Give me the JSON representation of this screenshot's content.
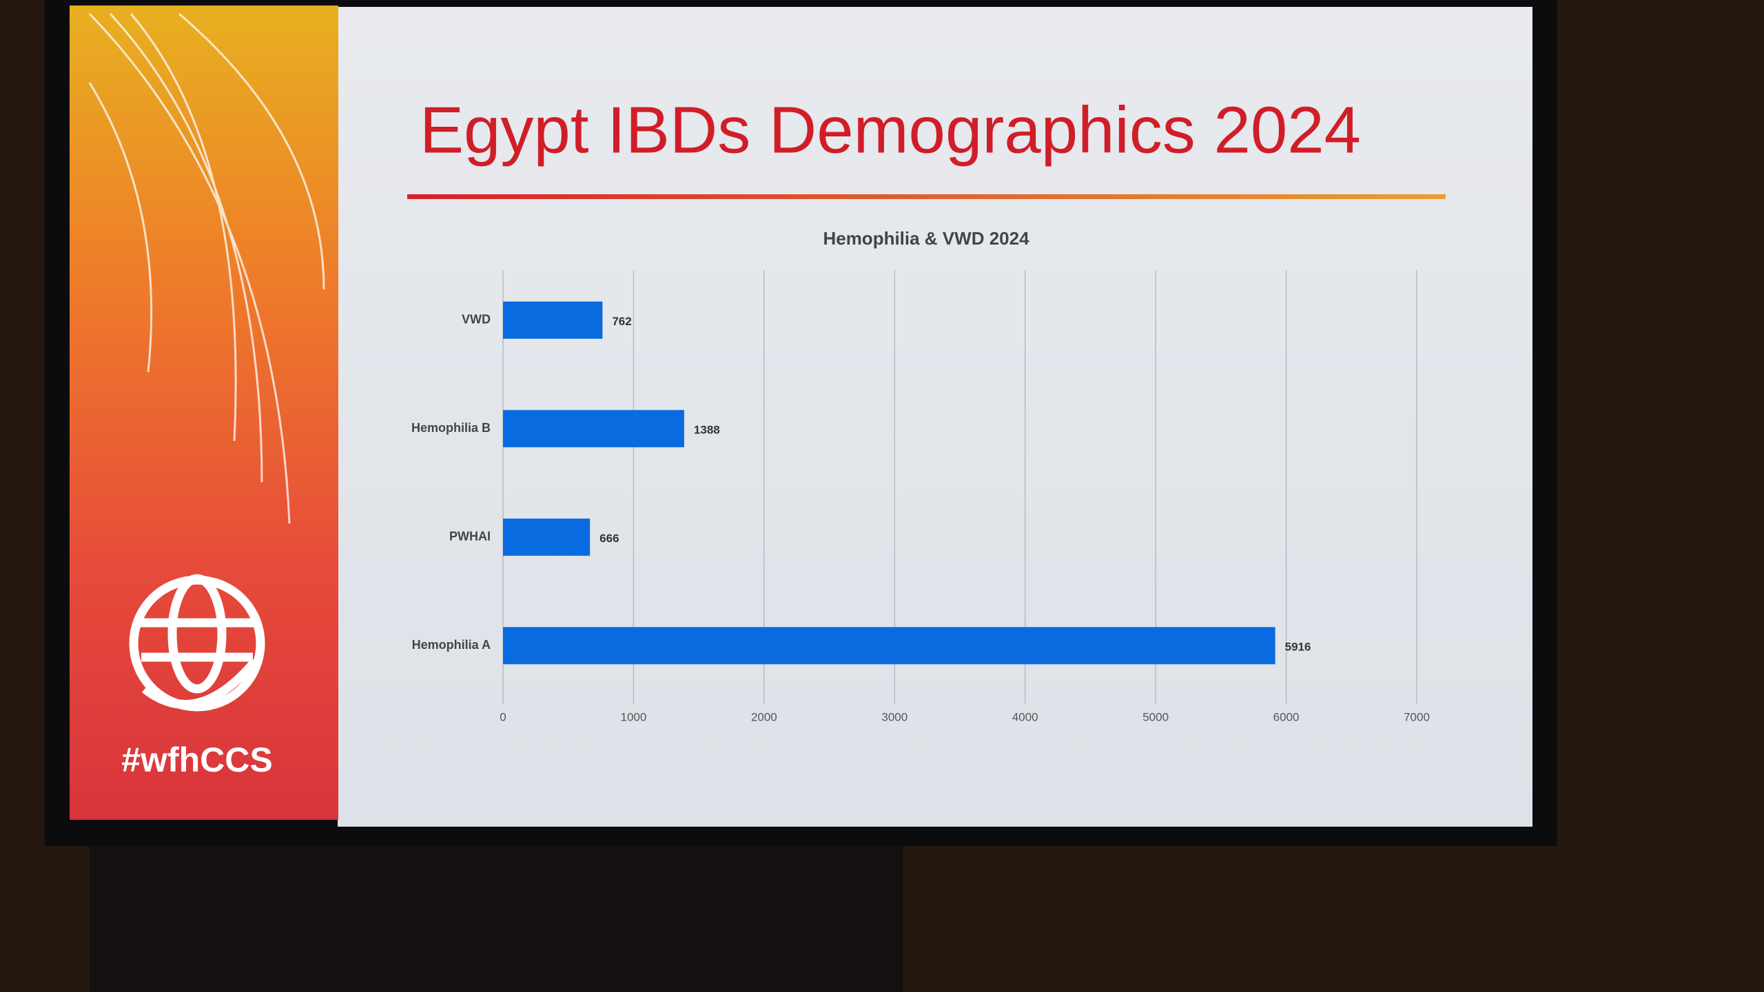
{
  "slide_title": "Egypt IBDs Demographics 2024",
  "hashtag": "#wfhCCS",
  "chart_data": {
    "type": "bar",
    "orientation": "horizontal",
    "title": "Hemophilia & VWD 2024",
    "categories": [
      "VWD",
      "Hemophilia B",
      "PWHAI",
      "Hemophilia A"
    ],
    "values": [
      762,
      1388,
      666,
      5916
    ],
    "color": "#0a6be0",
    "xlim": [
      0,
      7000
    ],
    "xticks": [
      0,
      1000,
      2000,
      3000,
      4000,
      5000,
      6000,
      7000
    ],
    "grid": true
  }
}
